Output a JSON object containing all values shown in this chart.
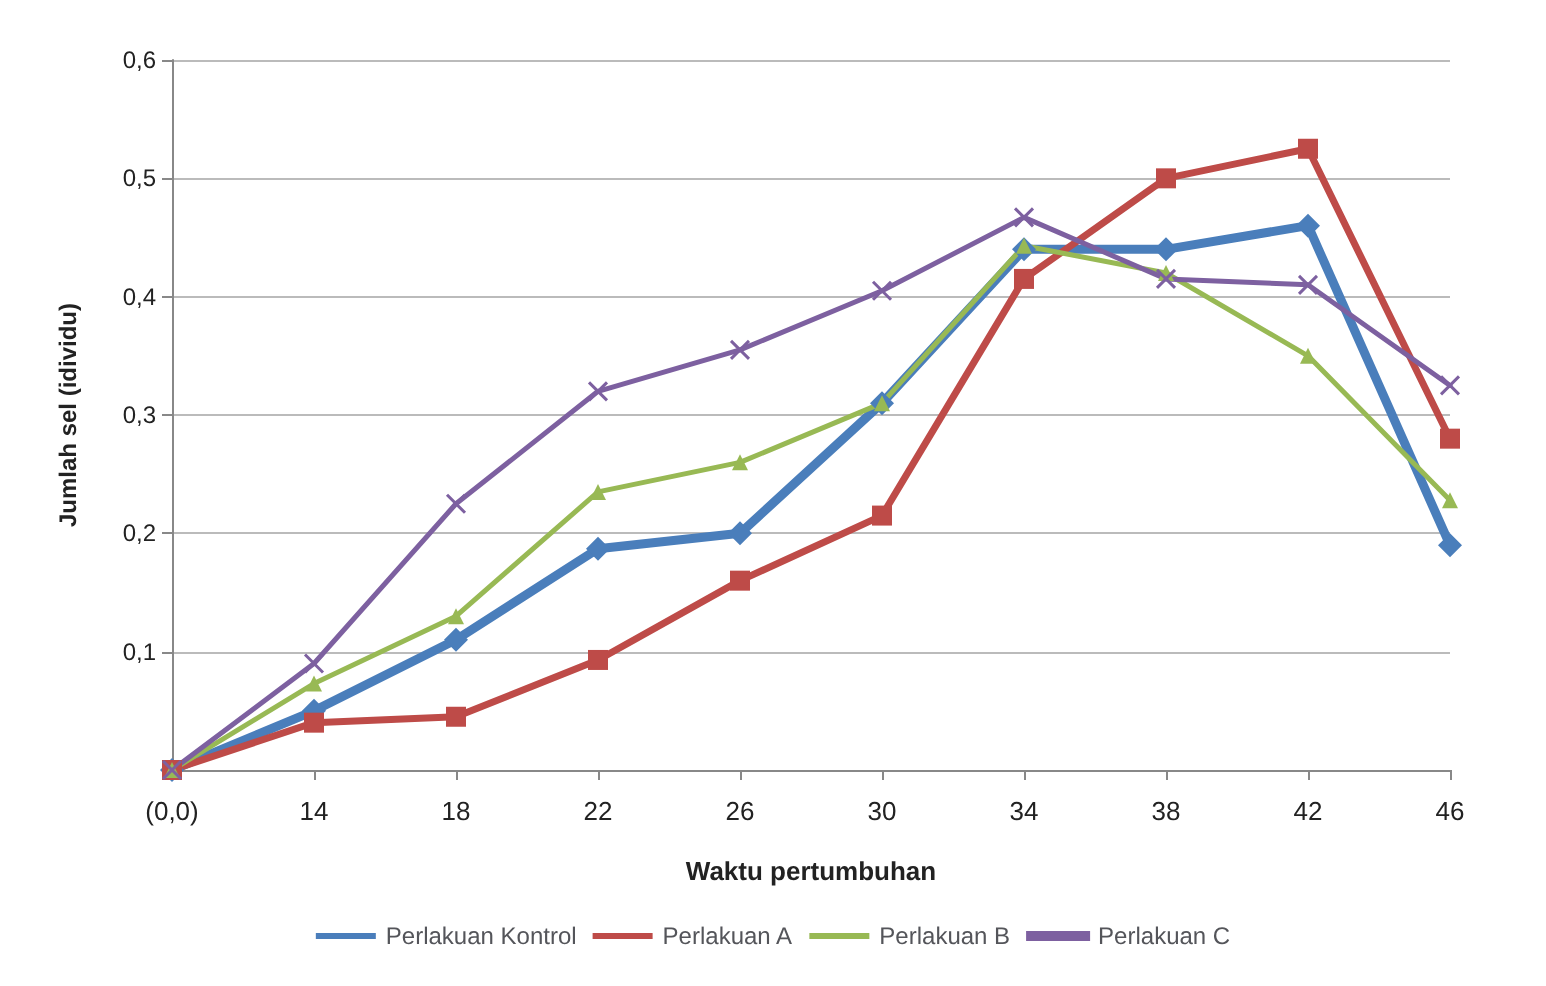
{
  "chart_data": {
    "type": "line",
    "xlabel": "Waktu pertumbuhan",
    "ylabel": "Jumlah sel (idividu)",
    "categories": [
      "(0,0)",
      "14",
      "18",
      "22",
      "26",
      "30",
      "34",
      "38",
      "42",
      "46"
    ],
    "series": [
      {
        "name": "Perlakuan Kontrol",
        "color": "#4a7ebb",
        "marker": "diamond",
        "values": [
          0,
          0.05,
          0.11,
          0.187,
          0.2,
          0.31,
          0.44,
          0.44,
          0.46,
          0.19
        ]
      },
      {
        "name": "Perlakuan A",
        "color": "#be4b48",
        "marker": "square",
        "values": [
          0,
          0.04,
          0.045,
          0.093,
          0.16,
          0.215,
          0.415,
          0.5,
          0.525,
          0.28
        ]
      },
      {
        "name": "Perlakuan B",
        "color": "#98b954",
        "marker": "triangle",
        "values": [
          0,
          0.073,
          0.13,
          0.235,
          0.26,
          0.31,
          0.443,
          0.42,
          0.35,
          0.228
        ]
      },
      {
        "name": "Perlakuan C",
        "color": "#7d60a0",
        "marker": "cross",
        "values": [
          0,
          0.09,
          0.225,
          0.32,
          0.355,
          0.405,
          0.467,
          0.415,
          0.41,
          0.325
        ]
      }
    ],
    "ylim": [
      0,
      0.6
    ],
    "yticks": [
      {
        "value": 0,
        "label": null
      },
      {
        "value": 0.1,
        "label": "0,1"
      },
      {
        "value": 0.2,
        "label": "0,2"
      },
      {
        "value": 0.3,
        "label": "0,3"
      },
      {
        "value": 0.4,
        "label": "0,4"
      },
      {
        "value": 0.5,
        "label": "0,5"
      },
      {
        "value": 0.6,
        "label": "0,6"
      }
    ],
    "grid": "y",
    "legend": "bottom",
    "line_style": "solid"
  }
}
